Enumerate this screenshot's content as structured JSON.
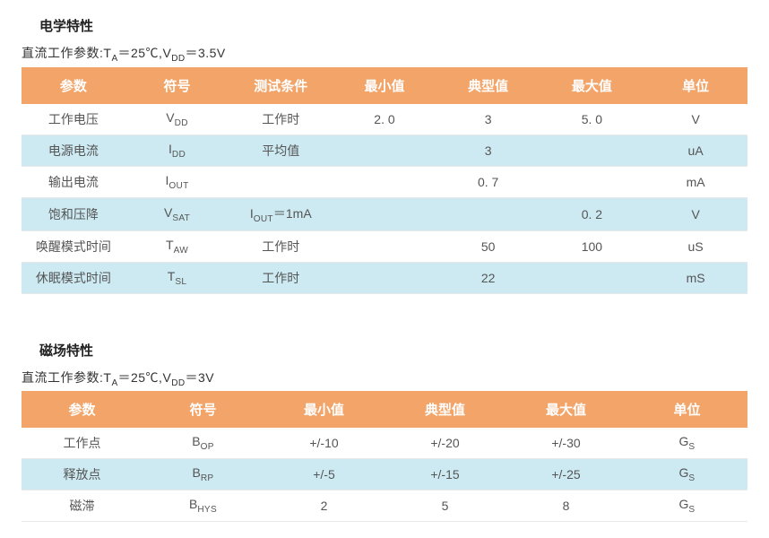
{
  "section1": {
    "title": "电学特性",
    "subtitle_prefix": "直流工作参数:T",
    "subtitle_sub1": "A",
    "subtitle_mid": "＝25℃,V",
    "subtitle_sub2": "DD",
    "subtitle_suffix": "＝3.5V",
    "headers": [
      "参数",
      "符号",
      "测试条件",
      "最小值",
      "典型值",
      "最大值",
      "单位"
    ],
    "rows": [
      {
        "param": "工作电压",
        "sym_main": "V",
        "sym_sub": "DD",
        "cond_main": "工作时",
        "cond_sub": "",
        "min": "2. 0",
        "typ": "3",
        "max": "5. 0",
        "unit": "V"
      },
      {
        "param": "电源电流",
        "sym_main": "I",
        "sym_sub": "DD",
        "cond_main": "平均值",
        "cond_sub": "",
        "min": "",
        "typ": "3",
        "max": "",
        "unit": "uA"
      },
      {
        "param": "输出电流",
        "sym_main": "I",
        "sym_sub": "OUT",
        "cond_main": "",
        "cond_sub": "",
        "min": "",
        "typ": "0. 7",
        "max": "",
        "unit": "mA"
      },
      {
        "param": "饱和压降",
        "sym_main": "V",
        "sym_sub": "SAT",
        "cond_main": "I",
        "cond_sub": "OUT",
        "cond_tail": "＝1mA",
        "min": "",
        "typ": "",
        "max": "0. 2",
        "unit": "V"
      },
      {
        "param": "唤醒模式时间",
        "sym_main": "T",
        "sym_sub": "AW",
        "cond_main": "工作时",
        "cond_sub": "",
        "min": "",
        "typ": "50",
        "max": "100",
        "unit": "uS"
      },
      {
        "param": "休眠模式时间",
        "sym_main": "T",
        "sym_sub": "SL",
        "cond_main": "工作时",
        "cond_sub": "",
        "min": "",
        "typ": "22",
        "max": "",
        "unit": "mS"
      }
    ]
  },
  "section2": {
    "title": "磁场特性",
    "subtitle_prefix": "直流工作参数:T",
    "subtitle_sub1": "A",
    "subtitle_mid": "＝25℃,V",
    "subtitle_sub2": "DD",
    "subtitle_suffix": "＝3V",
    "headers": [
      "参数",
      "符号",
      "最小值",
      "典型值",
      "最大值",
      "单位"
    ],
    "rows": [
      {
        "param": "工作点",
        "sym_main": "B",
        "sym_sub": "OP",
        "min": "+/-10",
        "typ": "+/-20",
        "max": "+/-30",
        "unit_main": "G",
        "unit_sub": "S"
      },
      {
        "param": "释放点",
        "sym_main": "B",
        "sym_sub": "RP",
        "min": "+/-5",
        "typ": "+/-15",
        "max": "+/-25",
        "unit_main": "G",
        "unit_sub": "S"
      },
      {
        "param": "磁滞",
        "sym_main": "B",
        "sym_sub": "HYS",
        "min": "2",
        "typ": "5",
        "max": "8",
        "unit_main": "G",
        "unit_sub": "S"
      }
    ]
  },
  "style": {
    "header_bg": "#f2a469",
    "header_fg": "#ffffff",
    "row_even_bg": "#cdeaf2",
    "row_odd_bg": "#ffffff",
    "border_color": "#e8e8e8",
    "text_color": "#555555",
    "title_color": "#222222"
  }
}
